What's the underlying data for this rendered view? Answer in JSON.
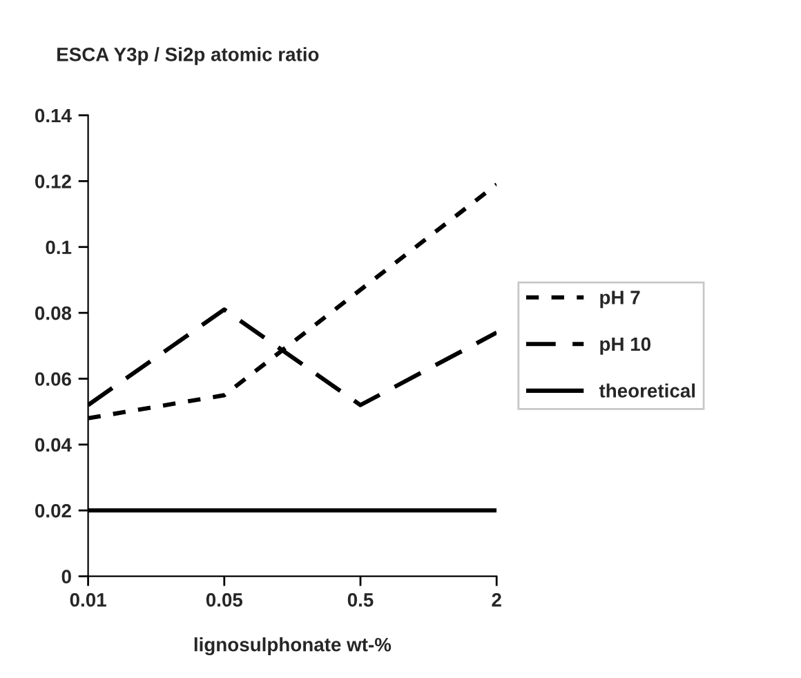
{
  "chart_data": {
    "type": "line",
    "title": "ESCA Y3p / Si2p atomic ratio",
    "xlabel": "lignosulphonate wt-%",
    "categories": [
      "0.01",
      "0.05",
      "0.5",
      "2"
    ],
    "series": [
      {
        "name": "pH 7",
        "color": "#000000",
        "line_style": "dotted",
        "values": [
          0.048,
          0.055,
          0.087,
          0.119
        ]
      },
      {
        "name": "pH 10",
        "color": "#000000",
        "line_style": "dashed",
        "values": [
          0.052,
          0.081,
          0.052,
          0.074
        ]
      },
      {
        "name": "theoretical",
        "color": "#000000",
        "line_style": "solid",
        "values": [
          0.02,
          0.02,
          0.02,
          0.02
        ]
      }
    ],
    "ylim": [
      0,
      0.14
    ],
    "yticks": [
      0,
      0.02,
      0.04,
      0.06,
      0.08,
      {
        "value": 0.1,
        "label": "0.1"
      },
      0.12,
      0.14
    ],
    "grid": false,
    "legend": "right",
    "marker": "none"
  }
}
